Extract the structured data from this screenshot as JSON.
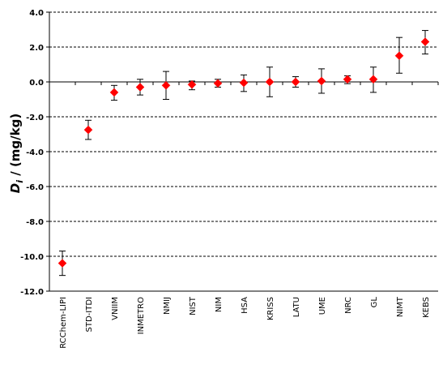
{
  "chart_data": {
    "type": "scatter",
    "ylabel_symbol": "D",
    "ylabel_subscript": "i",
    "ylabel_rest": " / (mg/kg)",
    "ylim": [
      -12.0,
      4.0
    ],
    "yticks": [
      "4.0",
      "2.0",
      "0.0",
      "-2.0",
      "-4.0",
      "-6.0",
      "-8.0",
      "-10.0",
      "-12.0"
    ],
    "ytick_values": [
      4,
      2,
      0,
      -2,
      -4,
      -6,
      -8,
      -10,
      -12
    ],
    "grid": "horizontal-dashed",
    "categories": [
      "RCChem-LIPI",
      "STD-ITDI",
      "VNIIM",
      "INMETRO",
      "NMIJ",
      "NIST",
      "NIM",
      "HSA",
      "KRISS",
      "LATU",
      "UME",
      "NRC",
      "GL",
      "NIMT",
      "KEBS"
    ],
    "values": [
      -10.4,
      -2.75,
      -0.6,
      -0.3,
      -0.2,
      -0.15,
      -0.08,
      -0.05,
      0.0,
      0.0,
      0.05,
      0.15,
      0.15,
      1.5,
      2.3
    ],
    "err_low": [
      -11.1,
      -3.3,
      -1.05,
      -0.75,
      -1.0,
      -0.45,
      -0.3,
      -0.55,
      -0.85,
      -0.3,
      -0.65,
      -0.1,
      -0.6,
      0.5,
      1.6
    ],
    "err_high": [
      -9.7,
      -2.2,
      -0.2,
      0.15,
      0.6,
      0.05,
      0.15,
      0.4,
      0.85,
      0.3,
      0.75,
      0.35,
      0.85,
      2.55,
      2.95
    ],
    "marker_color": "#ff0000"
  }
}
